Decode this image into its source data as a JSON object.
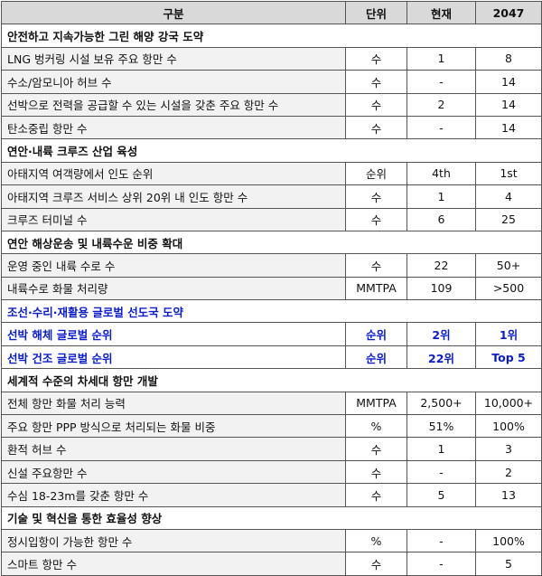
{
  "table": {
    "header": [
      "구분",
      "단위",
      "현재",
      "2047"
    ],
    "sections": [
      {
        "title": "안전하고 지속가능한 그린 해양 강국 도약",
        "rows": [
          [
            "LNG 벙커링 시설 보유 주요 항만 수",
            "수",
            "1",
            "8"
          ],
          [
            "수소/암모니아 허브 수",
            "수",
            "-",
            "14"
          ],
          [
            "선박으로 전력을 공급할 수 있는 시설을 갖춘 주요 항만 수",
            "수",
            "2",
            "14"
          ],
          [
            "탄소중립 항만 수",
            "수",
            "-",
            "14"
          ]
        ]
      },
      {
        "title": "연안·내륙 크루즈 산업 육성",
        "rows": [
          [
            "아태지역 여객량에서 인도 순위",
            "순위",
            "4th",
            "1st"
          ],
          [
            "아태지역 크루즈 서비스 상위 20위 내 인도 항만 수",
            "수",
            "1",
            "4"
          ],
          [
            "크루즈 터미널 수",
            "수",
            "6",
            "25"
          ]
        ]
      },
      {
        "title": "연안 해상운송 및 내륙수운 비중 확대",
        "rows": [
          [
            "운영 중인 내륙 수로 수",
            "수",
            "22",
            "50+"
          ],
          [
            "내륙수로 화물 처리량",
            "MMTPA",
            "109",
            ">500"
          ]
        ]
      },
      {
        "title": "조선·수리·재활용 글로벌 선도국 도약",
        "color": "#0a1ccf",
        "rows": [
          [
            "선박 해체 글로벌 순위",
            "순위",
            "2위",
            "1위"
          ],
          [
            "선박 건조 글로벌 순위",
            "순위",
            "22위",
            "Top 5"
          ]
        ]
      },
      {
        "title": "세계적 수준의 차세대 항만 개발",
        "rows": [
          [
            "전체 항만 화물 처리 능력",
            "MMTPA",
            "2,500+",
            "10,000+"
          ],
          [
            "주요 항만 PPP 방식으로 처리되는 화물 비중",
            "%",
            "51%",
            "100%"
          ],
          [
            "환적 허브 수",
            "수",
            "1",
            "3"
          ],
          [
            "신설 주요항만 수",
            "수",
            "-",
            "2"
          ],
          [
            "수심 18-23m를 갖춘 항만 수",
            "수",
            "5",
            "13"
          ]
        ]
      },
      {
        "title": "기술 및 혁신을 통한 효율성 향상",
        "rows": [
          [
            "정시입항이 가능한 항만 수",
            "%",
            "-",
            "100%"
          ],
          [
            "스마트 항만 수",
            "수",
            "-",
            "5"
          ]
        ]
      }
    ]
  }
}
